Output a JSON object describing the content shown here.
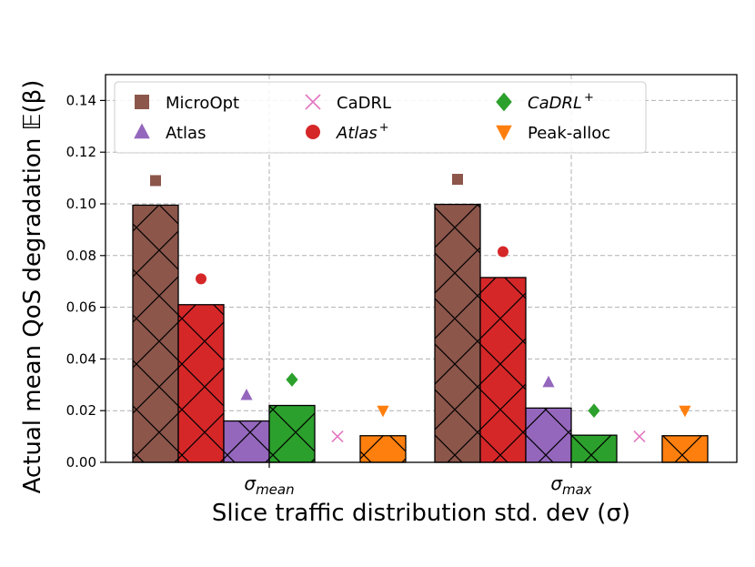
{
  "chart_data": {
    "type": "bar",
    "xlabel": "Slice traffic distribution std. dev (σ)",
    "ylabel": "Actual mean QoS degradation 𝔼(β)",
    "ylim": [
      0,
      0.15
    ],
    "yticks": [
      0.0,
      0.02,
      0.04,
      0.06,
      0.08,
      0.1,
      0.12,
      0.14
    ],
    "ytick_labels": [
      "0.00",
      "0.02",
      "0.04",
      "0.06",
      "0.08",
      "0.10",
      "0.12",
      "0.14"
    ],
    "grid": true,
    "legend_position": "top",
    "groups": [
      {
        "label_base": "σ",
        "label_sub": "mean"
      },
      {
        "label_base": "σ",
        "label_sub": "max"
      }
    ],
    "series": [
      {
        "name": "MicroOpt",
        "superscript": "",
        "italic": false,
        "color": "#8c564b",
        "marker": "square",
        "bar_values": [
          0.0995,
          0.0998
        ],
        "marker_values": [
          0.109,
          0.1095
        ]
      },
      {
        "name": "Atlas",
        "superscript": "+",
        "italic": true,
        "color": "#d62728",
        "marker": "circle",
        "bar_values": [
          0.061,
          0.0715
        ],
        "marker_values": [
          0.071,
          0.0815
        ]
      },
      {
        "name": "Atlas",
        "superscript": "",
        "italic": false,
        "color": "#9467bd",
        "marker": "triangle-up",
        "bar_values": [
          0.016,
          0.021
        ],
        "marker_values": [
          0.026,
          0.031
        ]
      },
      {
        "name": "CaDRL",
        "superscript": "+",
        "italic": true,
        "color": "#2ca02c",
        "marker": "diamond",
        "bar_values": [
          0.022,
          0.0105
        ],
        "marker_values": [
          0.032,
          0.02
        ]
      },
      {
        "name": "CaDRL",
        "superscript": "",
        "italic": false,
        "color": "#e377c2",
        "marker": "x",
        "bar_values": [
          0.0,
          0.0
        ],
        "marker_values": [
          0.01,
          0.01
        ]
      },
      {
        "name": "Peak-alloc",
        "superscript": "",
        "italic": false,
        "color": "#ff7f0e",
        "marker": "triangle-down",
        "bar_values": [
          0.0103,
          0.0103
        ],
        "marker_values": [
          0.02,
          0.02
        ]
      }
    ],
    "legend_order": [
      0,
      2,
      4,
      1,
      3,
      5
    ]
  }
}
